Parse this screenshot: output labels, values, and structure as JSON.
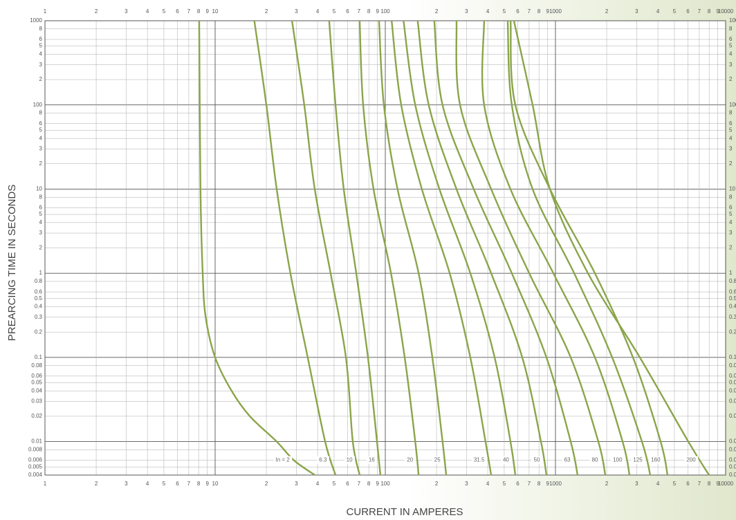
{
  "chart_data": {
    "type": "line",
    "x_label": "CURRENT IN AMPERES",
    "y_label": "PREARCING TIME IN SECONDS",
    "log_x": true,
    "log_y": true,
    "grid": true,
    "xlim": [
      1,
      10000
    ],
    "ylim": [
      0.004,
      1000
    ],
    "xticks": [
      1,
      2,
      3,
      4,
      5,
      6,
      7,
      8,
      9,
      10,
      {
        "value": 20,
        "label": "2"
      },
      {
        "value": 30,
        "label": "3"
      },
      {
        "value": 40,
        "label": "4"
      },
      {
        "value": 50,
        "label": "5"
      },
      {
        "value": 60,
        "label": "6"
      },
      {
        "value": 70,
        "label": "7"
      },
      {
        "value": 80,
        "label": "8"
      },
      {
        "value": 90,
        "label": "9"
      },
      100,
      {
        "value": 200,
        "label": "2"
      },
      {
        "value": 300,
        "label": "3"
      },
      {
        "value": 400,
        "label": "4"
      },
      {
        "value": 500,
        "label": "5"
      },
      {
        "value": 600,
        "label": "6"
      },
      {
        "value": 700,
        "label": "7"
      },
      {
        "value": 800,
        "label": "8"
      },
      {
        "value": 900,
        "label": "9"
      },
      1000,
      {
        "value": 2000,
        "label": "2"
      },
      {
        "value": 3000,
        "label": "3"
      },
      {
        "value": 4000,
        "label": "4"
      },
      {
        "value": 5000,
        "label": "5"
      },
      {
        "value": 6000,
        "label": "6"
      },
      {
        "value": 7000,
        "label": "7"
      },
      {
        "value": 8000,
        "label": "8"
      },
      {
        "value": 9000,
        "label": "9"
      },
      10000
    ],
    "yticks": [
      1000,
      {
        "value": 800,
        "label": "8"
      },
      {
        "value": 600,
        "label": "6"
      },
      {
        "value": 500,
        "label": "5"
      },
      {
        "value": 400,
        "label": "4"
      },
      {
        "value": 300,
        "label": "3"
      },
      {
        "value": 200,
        "label": "2"
      },
      100,
      {
        "value": 80,
        "label": "8"
      },
      {
        "value": 60,
        "label": "6"
      },
      {
        "value": 50,
        "label": "5"
      },
      {
        "value": 40,
        "label": "4"
      },
      {
        "value": 30,
        "label": "3"
      },
      {
        "value": 20,
        "label": "2"
      },
      10,
      8,
      6,
      5,
      4,
      3,
      2,
      1,
      0.8,
      0.6,
      0.5,
      0.4,
      0.3,
      0.2,
      0.1,
      0.08,
      0.06,
      0.05,
      0.04,
      0.03,
      0.02,
      0.01,
      0.008,
      0.006,
      0.005,
      0.004
    ],
    "series": [
      {
        "name": "In = 2",
        "color": "#8aa54a",
        "x": [
          8.06,
          8.2,
          8.45,
          8.8,
          10,
          12.5,
          16,
          23,
          29,
          38.5
        ],
        "values": [
          1000,
          10,
          1,
          0.3,
          0.1,
          0.04,
          0.02,
          0.01,
          0.006,
          0.004
        ]
      },
      {
        "name": "6.3",
        "color": "#8aa54a",
        "x": [
          17,
          20,
          23,
          27.7,
          35,
          44.3,
          51
        ],
        "values": [
          1000,
          100,
          10,
          1,
          0.1,
          0.01,
          0.004
        ]
      },
      {
        "name": "10",
        "color": "#8aa54a",
        "x": [
          28.3,
          33.4,
          38.5,
          47.7,
          58.7,
          64.4,
          70.7
        ],
        "values": [
          1000,
          100,
          10,
          1,
          0.1,
          0.01,
          0.004
        ]
      },
      {
        "name": "16",
        "color": "#8aa54a",
        "x": [
          46.8,
          51,
          57,
          67.5,
          79.1,
          89.4,
          93.6
        ],
        "values": [
          1000,
          100,
          10,
          1,
          0.1,
          0.01,
          0.004
        ]
      },
      {
        "name": "20",
        "color": "#8aa54a",
        "x": [
          70.7,
          74.1,
          85.3,
          108,
          130,
          150,
          157
        ],
        "values": [
          1000,
          100,
          10,
          1,
          0.1,
          0.01,
          0.004
        ]
      },
      {
        "name": "25",
        "color": "#8aa54a",
        "x": [
          91.9,
          98.1,
          118,
          157,
          189,
          217,
          228
        ],
        "values": [
          1000,
          100,
          10,
          1,
          0.1,
          0.01,
          0.004
        ]
      },
      {
        "name": "31.5",
        "color": "#8aa54a",
        "x": [
          109,
          124,
          164,
          239,
          316,
          388,
          419
        ],
        "values": [
          1000,
          100,
          10,
          1,
          0.1,
          0.01,
          0.004
        ]
      },
      {
        "name": "40",
        "color": "#8aa54a",
        "x": [
          128,
          150,
          208,
          316,
          439,
          544,
          581
        ],
        "values": [
          1000,
          100,
          10,
          1,
          0.1,
          0.01,
          0.004
        ]
      },
      {
        "name": "50",
        "color": "#8aa54a",
        "x": [
          155,
          180,
          262,
          419,
          638,
          822,
          885
        ],
        "values": [
          1000,
          100,
          10,
          1,
          0.1,
          0.01,
          0.004
        ]
      },
      {
        "name": "63",
        "color": "#8aa54a",
        "x": [
          194,
          217,
          331,
          554,
          885,
          1229,
          1349
        ],
        "values": [
          1000,
          100,
          10,
          1,
          0.1,
          0.01,
          0.004
        ]
      },
      {
        "name": "80",
        "color": "#8aa54a",
        "x": [
          262,
          275,
          419,
          701,
          1229,
          1786,
          1962
        ],
        "values": [
          1000,
          100,
          10,
          1,
          0.1,
          0.01,
          0.004
        ]
      },
      {
        "name": "100",
        "color": "#8aa54a",
        "x": [
          381,
          381,
          544,
          972,
          1705,
          2480,
          2723
        ],
        "values": [
          1000,
          100,
          10,
          1,
          0.1,
          0.01,
          0.004
        ]
      },
      {
        "name": "125",
        "color": "#8aa54a",
        "x": [
          524,
          554,
          734,
          1288,
          2154,
          3222,
          3606
        ],
        "values": [
          1000,
          100,
          10,
          1,
          0.1,
          0.01,
          0.004
        ]
      },
      {
        "name": "160",
        "color": "#8aa54a",
        "x": [
          545,
          581,
          928,
          1705,
          2853,
          4149,
          4555
        ],
        "values": [
          1000,
          100,
          10,
          1,
          0.1,
          0.01,
          0.004
        ]
      },
      {
        "name": "200",
        "color": "#8aa54a",
        "x": [
          570,
          734,
          928,
          1553,
          3132,
          6034,
          7990
        ],
        "values": [
          1000,
          100,
          10,
          1,
          0.1,
          0.01,
          0.004
        ]
      }
    ]
  }
}
